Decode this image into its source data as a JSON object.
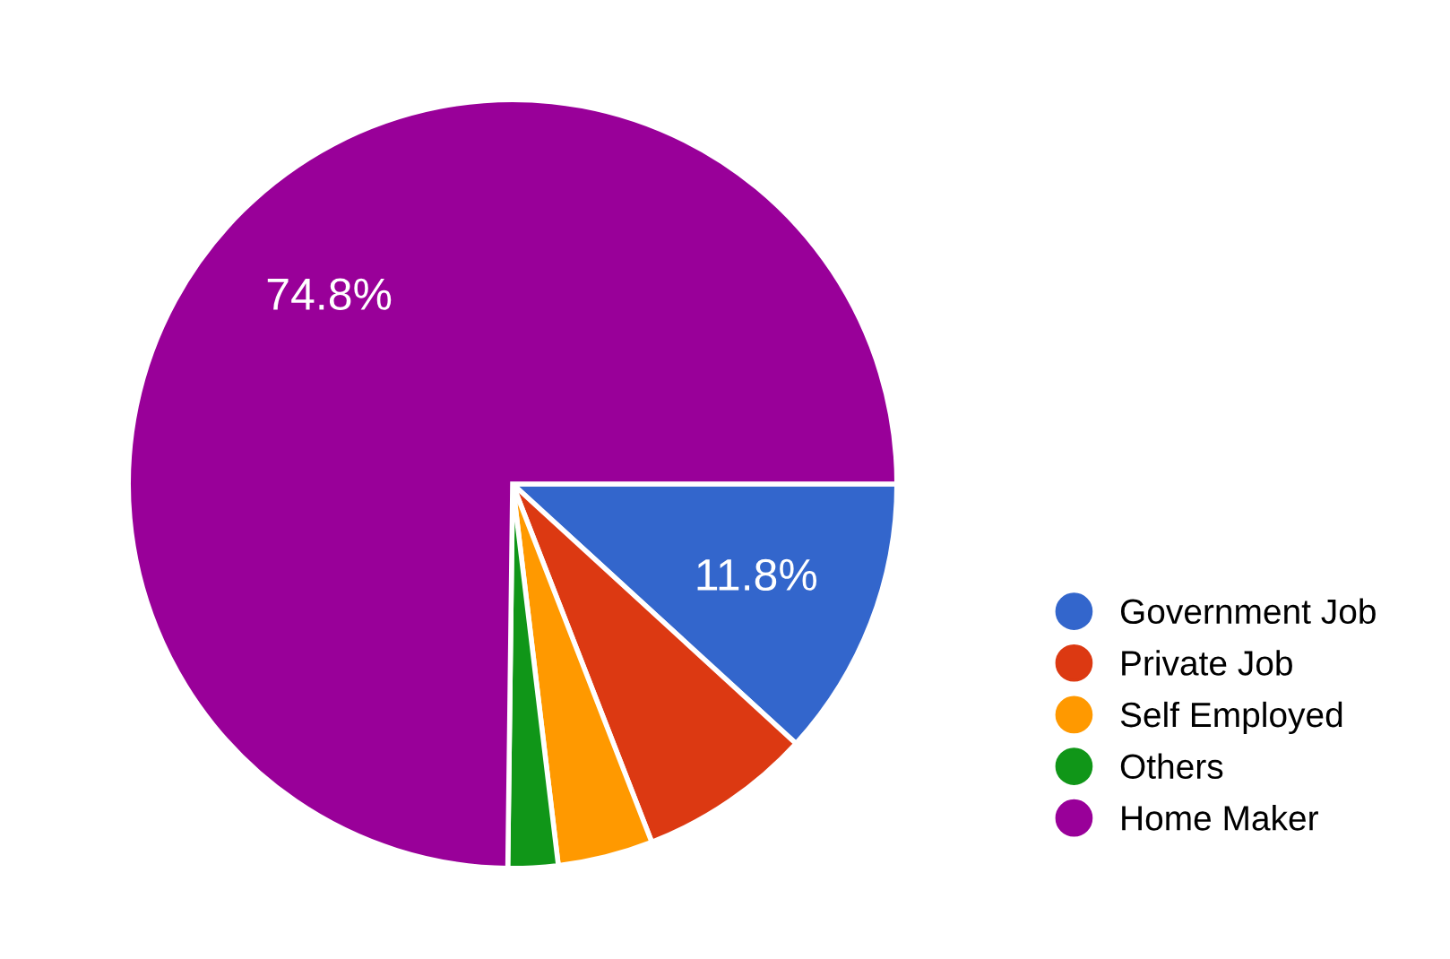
{
  "chart_data": {
    "type": "pie",
    "categories": [
      "Government Job",
      "Private Job",
      "Self Employed",
      "Others",
      "Home Maker"
    ],
    "values": [
      11.8,
      7.3,
      4.0,
      2.1,
      74.8
    ],
    "colors": [
      "#3366cc",
      "#dc3912",
      "#ff9900",
      "#109618",
      "#990099"
    ],
    "value_labels": [
      "11.8%",
      null,
      null,
      null,
      "74.8%"
    ],
    "legend": "right"
  }
}
